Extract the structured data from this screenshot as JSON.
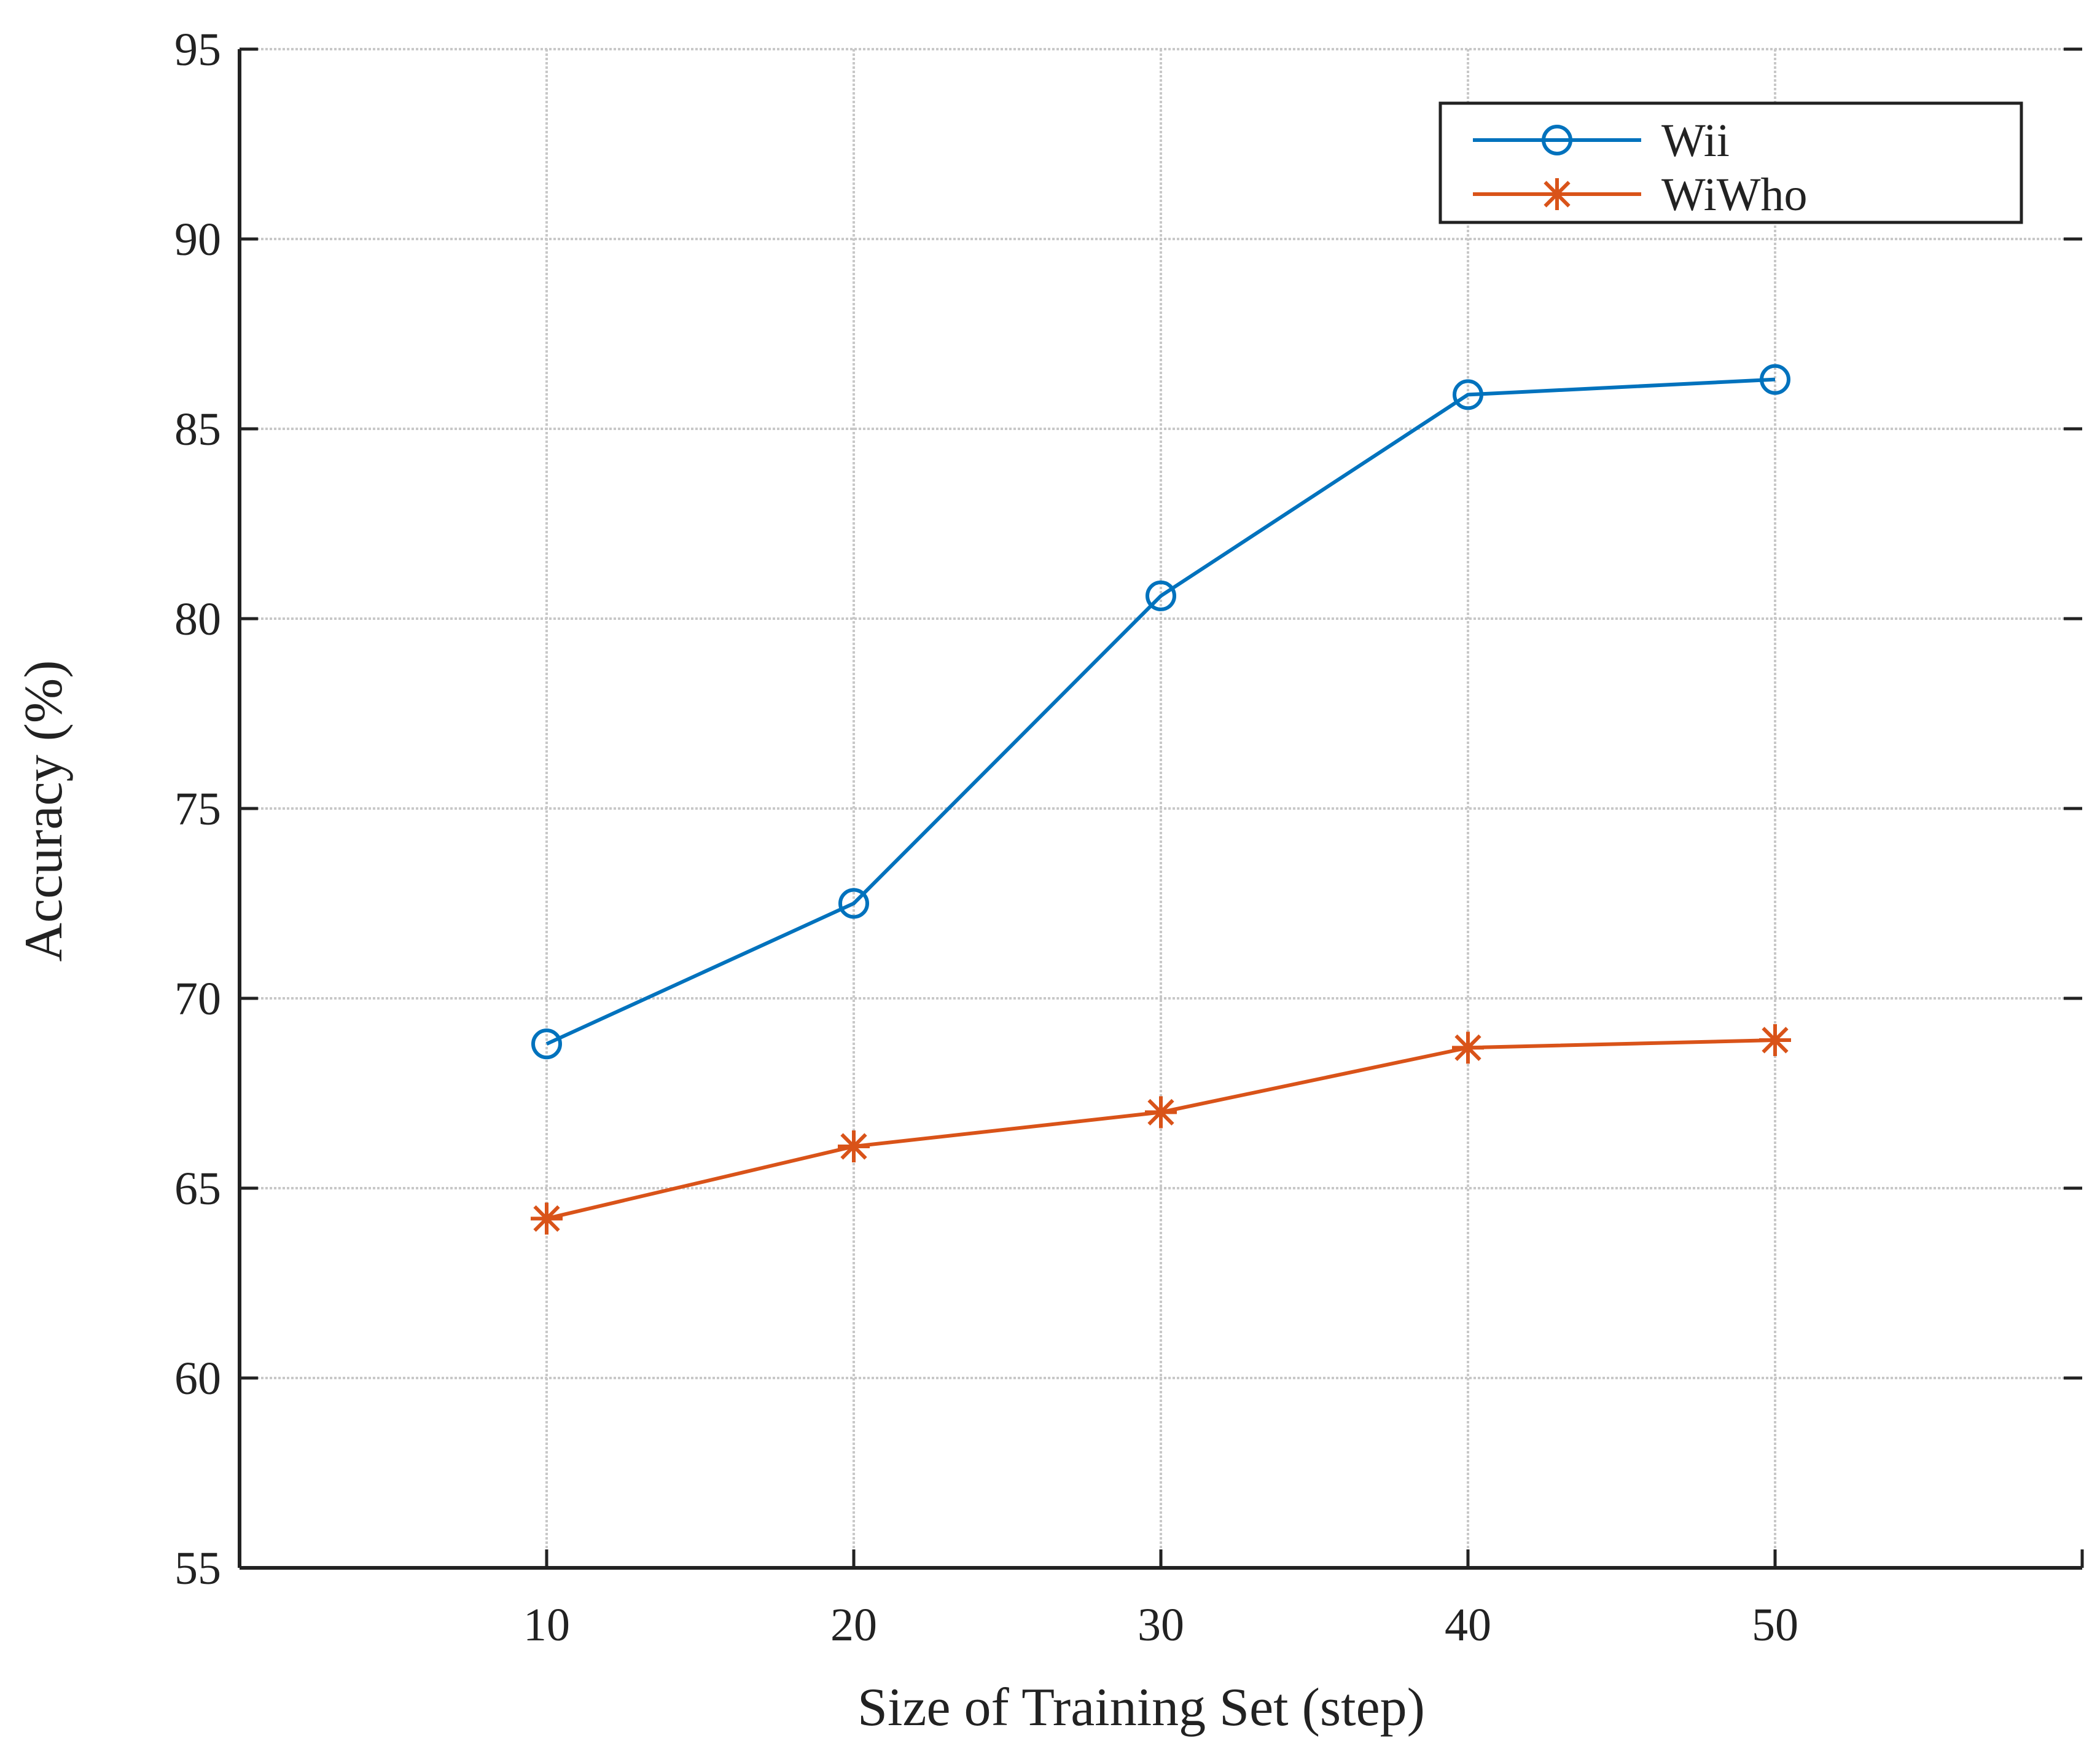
{
  "chart_data": {
    "type": "line",
    "title": "",
    "xlabel": "Size of Training Set (step)",
    "ylabel": "Accuracy (%)",
    "xlim": [
      0,
      60
    ],
    "ylim": [
      55,
      95
    ],
    "xticks": [
      10,
      20,
      30,
      40,
      50
    ],
    "xtick_labels": [
      "10",
      "20",
      "30",
      "40",
      "50"
    ],
    "yticks": [
      55,
      60,
      65,
      70,
      75,
      80,
      85,
      90,
      95
    ],
    "ytick_labels": [
      "55",
      "60",
      "65",
      "70",
      "75",
      "80",
      "85",
      "90",
      "95"
    ],
    "grid": true,
    "legend_position": "top-right",
    "series": [
      {
        "name": "Wii",
        "marker": "circle",
        "color": "#0072BD",
        "x": [
          10,
          20,
          30,
          40,
          50
        ],
        "values": [
          68.8,
          72.5,
          80.6,
          85.9,
          86.3
        ]
      },
      {
        "name": "WiWho",
        "marker": "asterisk",
        "color": "#D95319",
        "x": [
          10,
          20,
          30,
          40,
          50
        ],
        "values": [
          64.2,
          66.1,
          67.0,
          68.7,
          68.9
        ]
      }
    ]
  }
}
